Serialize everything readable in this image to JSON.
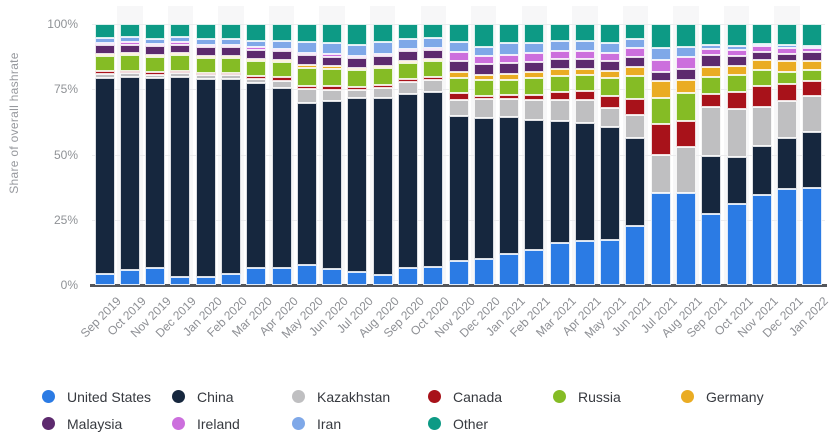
{
  "chart_data": {
    "type": "bar",
    "stacked": true,
    "unit": "%",
    "title": "",
    "xlabel": "",
    "ylabel": "Share of overall hashrate",
    "ylim": [
      0,
      100
    ],
    "grid": "horizontal",
    "x_tick_rotation": -45,
    "legend_position": "bottom",
    "y_ticks": [
      {
        "label": "100%",
        "value": 100
      },
      {
        "label": "75%",
        "value": 75
      },
      {
        "label": "50%",
        "value": 50
      },
      {
        "label": "25%",
        "value": 25
      },
      {
        "label": "0%",
        "value": 0
      }
    ],
    "categories": [
      "Sep 2019",
      "Oct 2019",
      "Nov 2019",
      "Dec 2019",
      "Jan 2020",
      "Feb 2020",
      "Mar 2020",
      "Apr 2020",
      "May 2020",
      "Jun 2020",
      "Jul 2020",
      "Aug 2020",
      "Sep 2020",
      "Oct 2020",
      "Nov 2020",
      "Dec 2020",
      "Jan 2021",
      "Feb 2021",
      "Mar 2021",
      "Apr 2021",
      "May 2021",
      "Jun 2021",
      "Jul 2021",
      "Aug 2021",
      "Sep 2021",
      "Oct 2021",
      "Nov 2021",
      "Dec 2021",
      "Jan 2022"
    ],
    "series": [
      {
        "name": "United States",
        "color": "#2B7BE4",
        "values": [
          4.1,
          5.8,
          6.5,
          3.2,
          3.0,
          4.3,
          6.4,
          6.5,
          7.7,
          6.0,
          5.0,
          3.8,
          6.5,
          7.0,
          9.2,
          9.9,
          11.9,
          13.5,
          16.0,
          16.9,
          17.3,
          22.5,
          35.4,
          35.4,
          27.4,
          31.0,
          34.6,
          36.8,
          37.4
        ]
      },
      {
        "name": "China",
        "color": "#16273E",
        "values": [
          75.3,
          74.0,
          72.7,
          76.4,
          75.8,
          74.5,
          71.0,
          69.0,
          62.0,
          64.5,
          66.5,
          67.8,
          66.8,
          66.9,
          55.4,
          54.2,
          52.5,
          49.8,
          46.9,
          45.1,
          43.1,
          34.0,
          0.0,
          0.0,
          22.2,
          18.0,
          18.5,
          19.5,
          21.2
        ]
      },
      {
        "name": "Kazakhstan",
        "color": "#BFBFC1",
        "values": [
          1.4,
          1.4,
          1.4,
          1.5,
          1.5,
          1.5,
          1.7,
          2.5,
          5.4,
          4.4,
          3.3,
          3.8,
          4.4,
          4.6,
          6.4,
          7.3,
          6.8,
          7.5,
          8.0,
          9.0,
          7.3,
          8.8,
          14.3,
          17.5,
          18.6,
          18.6,
          15.1,
          14.2,
          14.1
        ]
      },
      {
        "name": "Canada",
        "color": "#A8121A",
        "values": [
          1.1,
          1.0,
          1.0,
          1.0,
          1.0,
          1.0,
          1.1,
          1.8,
          1.2,
          1.2,
          1.2,
          1.2,
          1.2,
          1.2,
          2.6,
          1.2,
          1.5,
          2.2,
          3.0,
          3.2,
          4.6,
          6.0,
          12.0,
          9.9,
          5.1,
          6.4,
          8.0,
          6.4,
          5.8
        ]
      },
      {
        "name": "Russia",
        "color": "#85BC25",
        "values": [
          5.9,
          5.8,
          5.8,
          5.9,
          5.8,
          5.8,
          5.8,
          5.5,
          7.0,
          6.8,
          6.3,
          6.4,
          6.2,
          6.0,
          5.8,
          6.0,
          6.0,
          6.3,
          6.3,
          6.2,
          7.0,
          8.7,
          10.1,
          10.7,
          6.4,
          6.4,
          6.1,
          4.8,
          4.1
        ]
      },
      {
        "name": "Germany",
        "color": "#EAAC23",
        "values": [
          0.9,
          0.8,
          0.8,
          0.8,
          0.8,
          0.8,
          0.8,
          0.8,
          1.0,
          0.9,
          0.9,
          0.9,
          0.9,
          0.9,
          2.3,
          2.0,
          2.0,
          2.3,
          2.4,
          2.5,
          2.7,
          3.5,
          6.2,
          5.1,
          3.9,
          3.5,
          4.1,
          4.2,
          3.6
        ]
      },
      {
        "name": "Malaysia",
        "color": "#5D2A6E",
        "values": [
          3.3,
          3.3,
          3.3,
          3.3,
          3.3,
          3.3,
          3.4,
          3.5,
          3.7,
          3.6,
          3.6,
          3.7,
          3.5,
          3.4,
          4.2,
          4.0,
          4.2,
          4.0,
          3.9,
          3.9,
          3.9,
          3.8,
          3.8,
          4.1,
          4.5,
          3.9,
          2.9,
          2.6,
          3.2
        ]
      },
      {
        "name": "Ireland",
        "color": "#CC6FDD",
        "values": [
          0.9,
          0.9,
          0.9,
          0.9,
          0.9,
          0.9,
          0.9,
          0.9,
          1.0,
          1.0,
          1.0,
          1.0,
          1.0,
          1.0,
          3.5,
          3.2,
          3.4,
          3.2,
          3.0,
          2.9,
          2.9,
          3.6,
          4.5,
          4.5,
          2.5,
          2.3,
          2.2,
          2.4,
          1.6
        ]
      },
      {
        "name": "Iran",
        "color": "#7FA8E8",
        "values": [
          1.8,
          1.9,
          2.0,
          2.0,
          2.1,
          2.1,
          2.4,
          3.0,
          4.0,
          4.2,
          4.3,
          4.5,
          3.7,
          3.8,
          3.8,
          3.6,
          4.3,
          4.1,
          3.9,
          3.8,
          3.8,
          3.2,
          4.5,
          4.2,
          1.3,
          1.5,
          1.0,
          1.0,
          0.5
        ]
      },
      {
        "name": "Other",
        "color": "#0D9A85",
        "values": [
          5.3,
          5.1,
          5.6,
          5.0,
          5.8,
          5.8,
          6.5,
          6.5,
          7.0,
          7.4,
          7.9,
          6.9,
          5.8,
          5.2,
          6.8,
          8.6,
          7.4,
          7.1,
          6.6,
          6.5,
          7.4,
          5.9,
          9.2,
          8.6,
          8.1,
          8.4,
          7.5,
          8.1,
          8.5
        ]
      }
    ],
    "legend_rows": [
      [
        "United States",
        "China",
        "Kazakhstan",
        "Canada",
        "Russia",
        "Germany"
      ],
      [
        "Malaysia",
        "Ireland",
        "Iran",
        "Other"
      ]
    ]
  }
}
